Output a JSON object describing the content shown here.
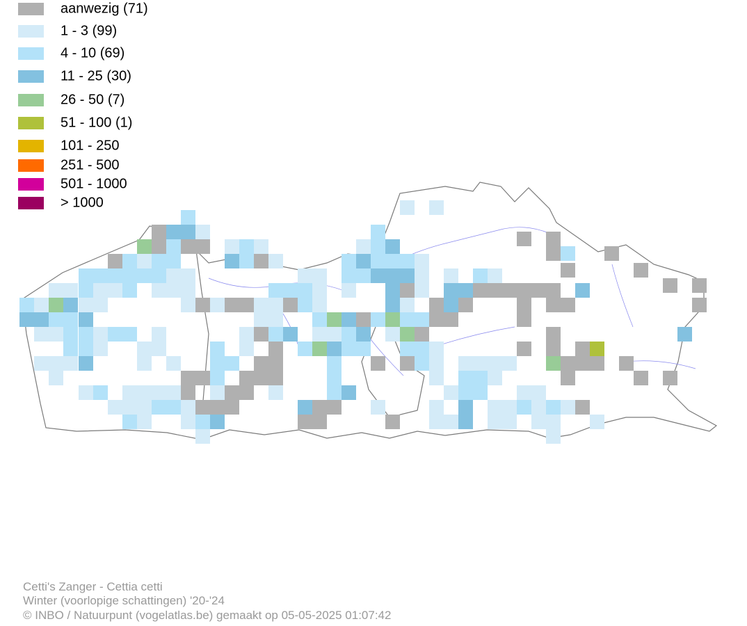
{
  "legend": [
    {
      "label": "aanwezig (71)",
      "color": "#b0b0b0"
    },
    {
      "label": "1 - 3 (99)",
      "color": "#d4ebf8"
    },
    {
      "label": "4 - 10 (69)",
      "color": "#b3e2f9"
    },
    {
      "label": "11 - 25 (30)",
      "color": "#83c1e0"
    },
    {
      "label": "26 - 50 (7)",
      "color": "#98cc97"
    },
    {
      "label": "51 - 100 (1)",
      "color": "#afc13b"
    },
    {
      "label": "101 - 250",
      "color": "#e3b400"
    },
    {
      "label": "251 - 500",
      "color": "#ff6a00"
    },
    {
      "label": "501 - 1000",
      "color": "#d2009b"
    },
    {
      "label": "> 1000",
      "color": "#9b0060"
    }
  ],
  "footer": {
    "species": "Cetti's Zanger - Cettia cetti",
    "period": "Winter (voorlopige schattingen) '20-'24",
    "credit": "© INBO / Natuurpunt (vogelatlas.be) gemaakt op 05-05-2025 01:07:42"
  }
}
